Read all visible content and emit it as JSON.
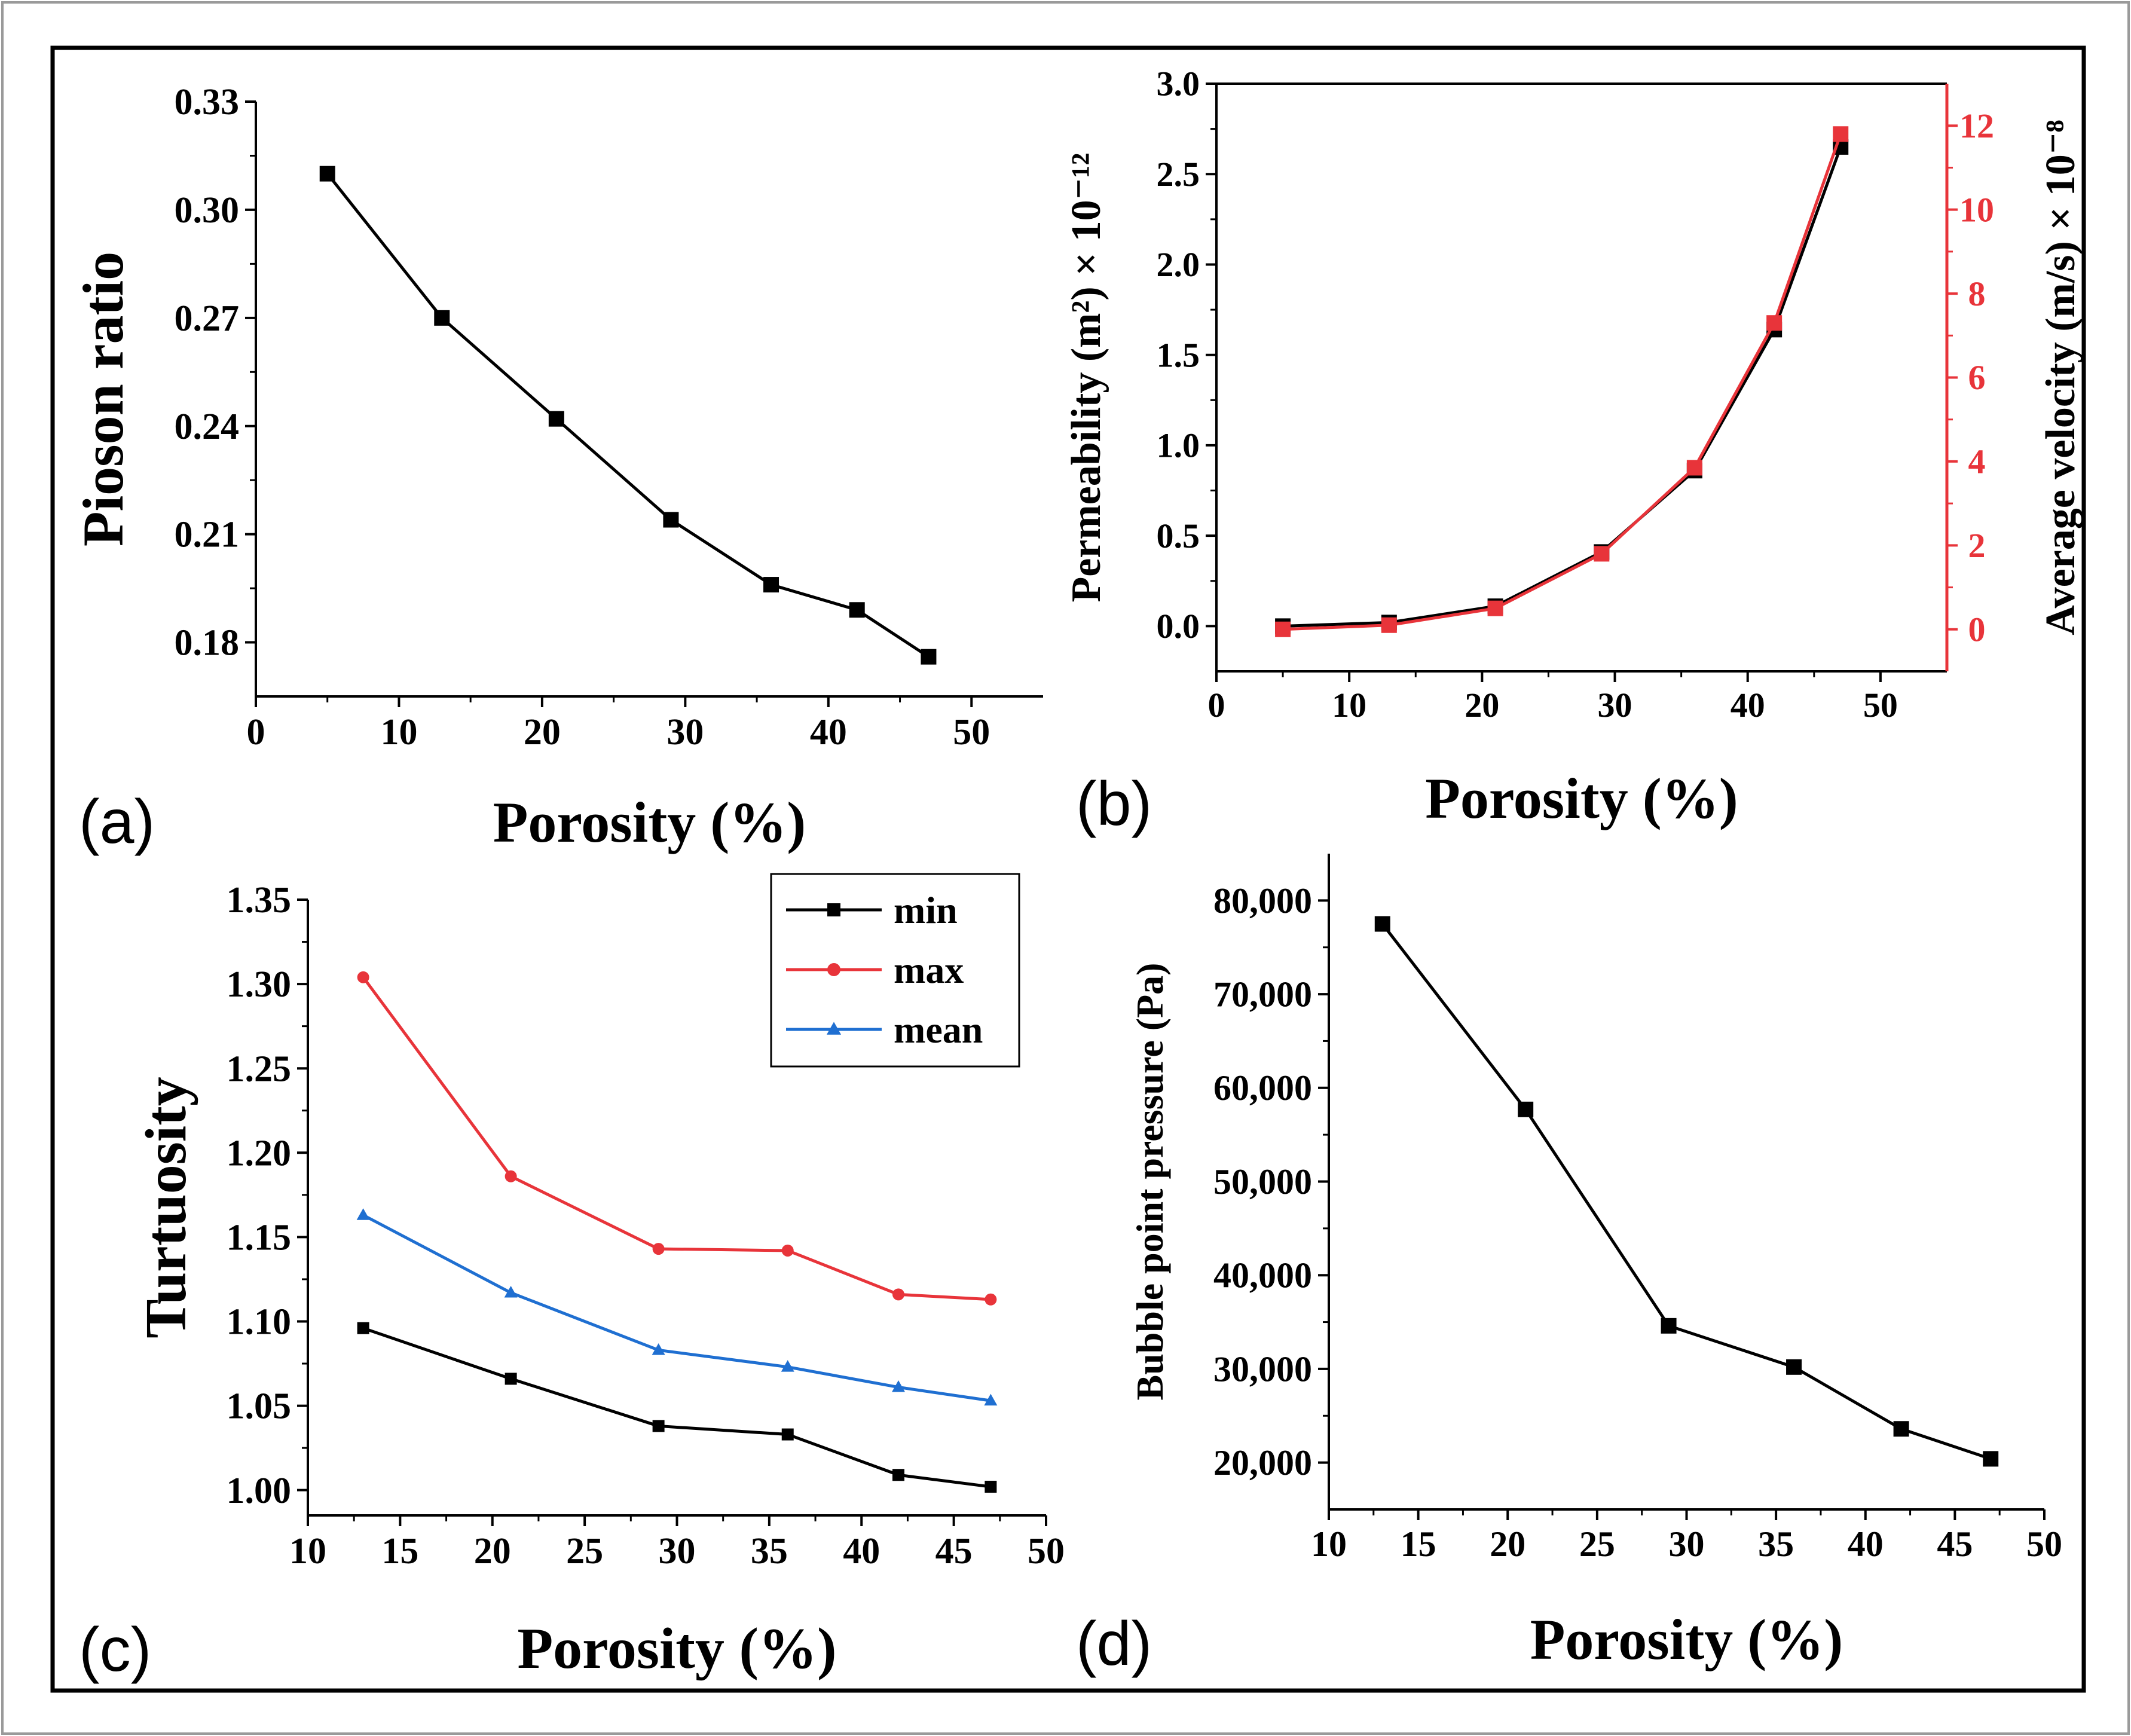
{
  "chart_data": [
    {
      "panel_label": "(a)",
      "type": "line",
      "xlabel": "Porosity (%)",
      "ylabel": "Pioson ratio",
      "xlim": [
        0,
        55
      ],
      "ylim": [
        0.165,
        0.33
      ],
      "xticks": [
        0,
        10,
        20,
        30,
        40,
        50
      ],
      "xtick_labels": [
        "0",
        "10",
        "20",
        "30",
        "40",
        "50"
      ],
      "yticks": [
        0.18,
        0.21,
        0.24,
        0.27,
        0.3,
        0.33
      ],
      "ytick_labels": [
        "0.18",
        "0.21",
        "0.24",
        "0.27",
        "0.30",
        "0.33"
      ],
      "series": [
        {
          "name": "Pioson ratio",
          "color": "#000000",
          "marker": "square",
          "x": [
            5,
            13,
            21,
            29,
            36,
            42,
            47
          ],
          "y": [
            0.31,
            0.27,
            0.242,
            0.214,
            0.196,
            0.189,
            0.176
          ]
        }
      ]
    },
    {
      "panel_label": "(b)",
      "type": "line",
      "xlabel": "Porosity (%)",
      "ylabel": "Permeability (m²) × 10⁻¹²",
      "y2label": "Average velocity (m/s) × 10⁻⁸",
      "xlim": [
        0,
        55
      ],
      "ylim": [
        -0.25,
        3.0
      ],
      "y2lim": [
        -1.0,
        13.0
      ],
      "xticks": [
        0,
        10,
        20,
        30,
        40,
        50
      ],
      "xtick_labels": [
        "0",
        "10",
        "20",
        "30",
        "40",
        "50"
      ],
      "yticks": [
        0.0,
        0.5,
        1.0,
        1.5,
        2.0,
        2.5,
        3.0
      ],
      "ytick_labels": [
        "0.0",
        "0.5",
        "1.0",
        "1.5",
        "2.0",
        "2.5",
        "3.0"
      ],
      "y2ticks": [
        0,
        2,
        4,
        6,
        8,
        10,
        12
      ],
      "y2tick_labels": [
        "0",
        "2",
        "4",
        "6",
        "8",
        "10",
        "12"
      ],
      "y2color": "#e8343a",
      "series": [
        {
          "name": "Permeability",
          "axis": "left",
          "color": "#000000",
          "marker": "square",
          "x": [
            5,
            13,
            21,
            29,
            36,
            42,
            47
          ],
          "y": [
            0.0,
            0.02,
            0.11,
            0.41,
            0.86,
            1.64,
            2.65
          ]
        },
        {
          "name": "Average velocity",
          "axis": "right",
          "color": "#e8343a",
          "marker": "square",
          "x": [
            5,
            13,
            21,
            29,
            36,
            42,
            47
          ],
          "y": [
            0.0,
            0.1,
            0.5,
            1.8,
            3.85,
            7.3,
            11.8
          ]
        }
      ]
    },
    {
      "panel_label": "(c)",
      "type": "line",
      "xlabel": "Porosity (%)",
      "ylabel": "Turtuosity",
      "xlim": [
        10,
        50
      ],
      "ylim": [
        0.985,
        1.35
      ],
      "xticks": [
        10,
        15,
        20,
        25,
        30,
        35,
        40,
        45,
        50
      ],
      "xtick_labels": [
        "10",
        "15",
        "20",
        "25",
        "30",
        "35",
        "40",
        "45",
        "50"
      ],
      "yticks": [
        1.0,
        1.05,
        1.1,
        1.15,
        1.2,
        1.25,
        1.3,
        1.35
      ],
      "ytick_labels": [
        "1.00",
        "1.05",
        "1.10",
        "1.15",
        "1.20",
        "1.25",
        "1.30",
        "1.35"
      ],
      "legend_position": "top-right",
      "series": [
        {
          "name": "min",
          "color": "#000000",
          "marker": "square",
          "x": [
            13,
            21,
            29,
            36,
            42,
            47
          ],
          "y": [
            1.096,
            1.066,
            1.038,
            1.033,
            1.009,
            1.002
          ]
        },
        {
          "name": "max",
          "color": "#e8343a",
          "marker": "circle",
          "x": [
            13,
            21,
            29,
            36,
            42,
            47
          ],
          "y": [
            1.304,
            1.186,
            1.143,
            1.142,
            1.116,
            1.113
          ]
        },
        {
          "name": "mean",
          "color": "#1f6fd1",
          "marker": "triangle",
          "x": [
            13,
            21,
            29,
            36,
            42,
            47
          ],
          "y": [
            1.163,
            1.117,
            1.083,
            1.073,
            1.061,
            1.053
          ]
        }
      ]
    },
    {
      "panel_label": "(d)",
      "type": "line",
      "xlabel": "Porosity (%)",
      "ylabel": "Bubble point pressure (Pa)",
      "xlim": [
        10,
        50
      ],
      "ylim": [
        15000,
        85000
      ],
      "xticks": [
        10,
        15,
        20,
        25,
        30,
        35,
        40,
        45,
        50
      ],
      "xtick_labels": [
        "10",
        "15",
        "20",
        "25",
        "30",
        "35",
        "40",
        "45",
        "50"
      ],
      "yticks": [
        20000,
        30000,
        40000,
        50000,
        60000,
        70000,
        80000
      ],
      "ytick_labels": [
        "20,000",
        "30,000",
        "40,000",
        "50,000",
        "60,000",
        "70,000",
        "80,000"
      ],
      "series": [
        {
          "name": "Bubble point pressure",
          "color": "#000000",
          "marker": "square",
          "x": [
            13,
            21,
            29,
            36,
            42,
            47
          ],
          "y": [
            77500,
            57700,
            34600,
            30200,
            23600,
            20400
          ]
        }
      ]
    }
  ]
}
